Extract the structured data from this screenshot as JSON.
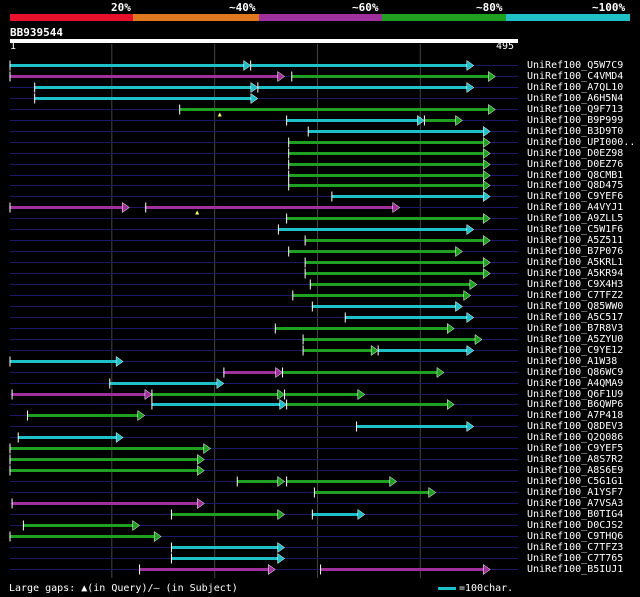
{
  "query": {
    "name": "BB939544",
    "start_label": "1",
    "end_label": "495",
    "length": 495
  },
  "identity_scale": [
    {
      "label": "20%",
      "color": "#e8102a"
    },
    {
      "label": "~40%",
      "color": "#e07820"
    },
    {
      "label": "~60%",
      "color": "#a0309c"
    },
    {
      "label": "~80%",
      "color": "#20a020"
    },
    {
      "label": "~100%",
      "color": "#20c0c8"
    }
  ],
  "colors": {
    "purple": "#a0309c",
    "green": "#20a020",
    "cyan": "#20c0c8",
    "row_line": "#1a1a66",
    "grid": "#444444"
  },
  "legend": {
    "gaps_text": "Large gaps: ▲(in Query)/– (in Subject)",
    "scale_text": "=100char."
  },
  "hits": [
    {
      "label": "UniRef100_Q5W7C9",
      "segments": [
        {
          "from": 1,
          "to": 235,
          "color": "cyan"
        },
        {
          "from": 235,
          "to": 452,
          "color": "cyan"
        }
      ]
    },
    {
      "label": "UniRef100_C4VMD4",
      "segments": [
        {
          "from": 1,
          "to": 268,
          "color": "purple"
        },
        {
          "from": 275,
          "to": 473,
          "color": "green"
        }
      ]
    },
    {
      "label": "UniRef100_A7QL10",
      "segments": [
        {
          "from": 25,
          "to": 242,
          "color": "cyan"
        },
        {
          "from": 242,
          "to": 452,
          "color": "cyan"
        }
      ]
    },
    {
      "label": "UniRef100_A6H5N4",
      "segments": [
        {
          "from": 25,
          "to": 242,
          "color": "cyan"
        }
      ]
    },
    {
      "label": "UniRef100_Q9F713",
      "segments": [
        {
          "from": 166,
          "to": 473,
          "color": "green"
        }
      ]
    },
    {
      "label": "UniRef100_B9P999",
      "segments": [
        {
          "from": 270,
          "to": 404,
          "color": "cyan"
        },
        {
          "from": 404,
          "to": 441,
          "color": "green"
        }
      ]
    },
    {
      "label": "UniRef100_B3D9T0",
      "segments": [
        {
          "from": 291,
          "to": 468,
          "color": "cyan"
        }
      ]
    },
    {
      "label": "UniRef100_UPI000..",
      "segments": [
        {
          "from": 272,
          "to": 468,
          "color": "green"
        }
      ]
    },
    {
      "label": "UniRef100_D0EZ98",
      "segments": [
        {
          "from": 272,
          "to": 468,
          "color": "green"
        }
      ]
    },
    {
      "label": "UniRef100_D0EZ76",
      "segments": [
        {
          "from": 272,
          "to": 468,
          "color": "green"
        }
      ]
    },
    {
      "label": "UniRef100_Q8CMB1",
      "segments": [
        {
          "from": 272,
          "to": 468,
          "color": "green"
        }
      ]
    },
    {
      "label": "UniRef100_Q8D475",
      "segments": [
        {
          "from": 272,
          "to": 468,
          "color": "green"
        }
      ]
    },
    {
      "label": "UniRef100_C9YEF6",
      "segments": [
        {
          "from": 314,
          "to": 468,
          "color": "cyan"
        }
      ]
    },
    {
      "label": "UniRef100_A4VYJ1",
      "segments": [
        {
          "from": 1,
          "to": 117,
          "color": "purple"
        },
        {
          "from": 133,
          "to": 380,
          "color": "purple"
        }
      ]
    },
    {
      "label": "UniRef100_A9ZLL5",
      "segments": [
        {
          "from": 270,
          "to": 468,
          "color": "green"
        }
      ]
    },
    {
      "label": "UniRef100_C5W1F6",
      "segments": [
        {
          "from": 262,
          "to": 452,
          "color": "cyan"
        }
      ]
    },
    {
      "label": "UniRef100_A5Z511",
      "segments": [
        {
          "from": 288,
          "to": 468,
          "color": "green"
        }
      ]
    },
    {
      "label": "UniRef100_B7P076",
      "segments": [
        {
          "from": 272,
          "to": 441,
          "color": "green"
        }
      ]
    },
    {
      "label": "UniRef100_A5KRL1",
      "segments": [
        {
          "from": 288,
          "to": 468,
          "color": "green"
        }
      ]
    },
    {
      "label": "UniRef100_A5KR94",
      "segments": [
        {
          "from": 288,
          "to": 468,
          "color": "green"
        }
      ]
    },
    {
      "label": "UniRef100_C9X4H3",
      "segments": [
        {
          "from": 293,
          "to": 455,
          "color": "green"
        }
      ]
    },
    {
      "label": "UniRef100_C7TFZ2",
      "segments": [
        {
          "from": 276,
          "to": 449,
          "color": "green"
        }
      ]
    },
    {
      "label": "UniRef100_Q85WW0",
      "segments": [
        {
          "from": 295,
          "to": 441,
          "color": "cyan"
        }
      ]
    },
    {
      "label": "UniRef100_A5C517",
      "segments": [
        {
          "from": 327,
          "to": 452,
          "color": "cyan"
        }
      ]
    },
    {
      "label": "UniRef100_B7R8V3",
      "segments": [
        {
          "from": 259,
          "to": 433,
          "color": "green"
        }
      ]
    },
    {
      "label": "UniRef100_A5ZYU0",
      "segments": [
        {
          "from": 286,
          "to": 460,
          "color": "green"
        }
      ]
    },
    {
      "label": "UniRef100_C9YE12",
      "segments": [
        {
          "from": 286,
          "to": 359,
          "color": "green"
        },
        {
          "from": 359,
          "to": 452,
          "color": "cyan"
        }
      ]
    },
    {
      "label": "UniRef100_A1W38",
      "segments": [
        {
          "from": 1,
          "to": 111,
          "color": "cyan"
        }
      ]
    },
    {
      "label": "UniRef100_Q86WC9",
      "segments": [
        {
          "from": 209,
          "to": 266,
          "color": "purple"
        },
        {
          "from": 266,
          "to": 423,
          "color": "green"
        }
      ]
    },
    {
      "label": "UniRef100_A4QMA9",
      "segments": [
        {
          "from": 98,
          "to": 209,
          "color": "cyan"
        }
      ]
    },
    {
      "label": "UniRef100_Q6F1U9",
      "segments": [
        {
          "from": 3,
          "to": 139,
          "color": "purple"
        },
        {
          "from": 139,
          "to": 268,
          "color": "green"
        },
        {
          "from": 268,
          "to": 346,
          "color": "green"
        }
      ]
    },
    {
      "label": "UniRef100_B6QWP6",
      "segments": [
        {
          "from": 139,
          "to": 270,
          "color": "cyan"
        },
        {
          "from": 270,
          "to": 433,
          "color": "green"
        }
      ]
    },
    {
      "label": "UniRef100_A7P418",
      "segments": [
        {
          "from": 18,
          "to": 132,
          "color": "green"
        }
      ]
    },
    {
      "label": "UniRef100_Q8DEV3",
      "segments": [
        {
          "from": 338,
          "to": 452,
          "color": "cyan"
        }
      ]
    },
    {
      "label": "UniRef100_Q2Q086",
      "segments": [
        {
          "from": 9,
          "to": 111,
          "color": "cyan"
        }
      ]
    },
    {
      "label": "UniRef100_C9YEF5",
      "segments": [
        {
          "from": 1,
          "to": 196,
          "color": "green"
        }
      ]
    },
    {
      "label": "UniRef100_A8S7R2",
      "segments": [
        {
          "from": 1,
          "to": 190,
          "color": "green"
        }
      ]
    },
    {
      "label": "UniRef100_A8S6E9",
      "segments": [
        {
          "from": 1,
          "to": 190,
          "color": "green"
        }
      ]
    },
    {
      "label": "UniRef100_C5G1G1",
      "segments": [
        {
          "from": 222,
          "to": 268,
          "color": "green"
        },
        {
          "from": 270,
          "to": 377,
          "color": "green"
        }
      ]
    },
    {
      "label": "UniRef100_A1YSF7",
      "segments": [
        {
          "from": 297,
          "to": 415,
          "color": "green"
        }
      ]
    },
    {
      "label": "UniRef100_A7VSA3",
      "segments": [
        {
          "from": 3,
          "to": 190,
          "color": "purple"
        }
      ]
    },
    {
      "label": "UniRef100_B0TIG4",
      "segments": [
        {
          "from": 158,
          "to": 268,
          "color": "green"
        },
        {
          "from": 295,
          "to": 346,
          "color": "cyan"
        }
      ]
    },
    {
      "label": "UniRef100_D0CJS2",
      "segments": [
        {
          "from": 14,
          "to": 127,
          "color": "green"
        }
      ]
    },
    {
      "label": "UniRef100_C9THQ6",
      "segments": [
        {
          "from": 1,
          "to": 148,
          "color": "green"
        }
      ]
    },
    {
      "label": "UniRef100_C7TFZ3",
      "segments": [
        {
          "from": 158,
          "to": 268,
          "color": "cyan"
        }
      ]
    },
    {
      "label": "UniRef100_C7T765",
      "segments": [
        {
          "from": 158,
          "to": 268,
          "color": "cyan"
        }
      ]
    },
    {
      "label": "UniRef100_B5IUJ1",
      "segments": [
        {
          "from": 127,
          "to": 259,
          "color": "purple"
        },
        {
          "from": 303,
          "to": 468,
          "color": "purple"
        }
      ]
    }
  ],
  "gap_markers": [
    {
      "hit_index": 4,
      "position": 205
    },
    {
      "hit_index": 13,
      "position": 183
    }
  ]
}
